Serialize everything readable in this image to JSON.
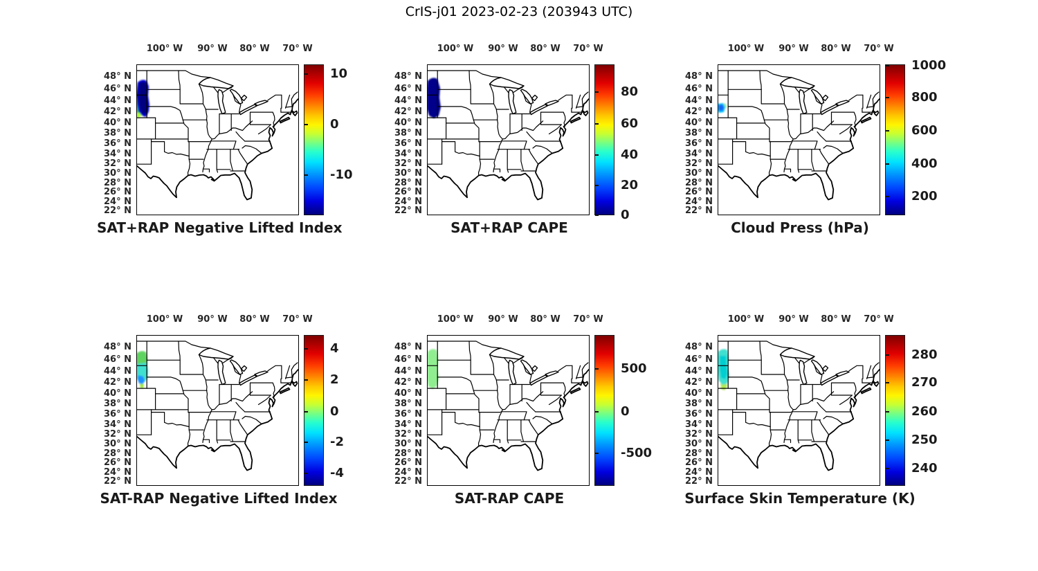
{
  "title": "CrIS-j01 2023-02-23 (203943 UTC)",
  "map_axes": {
    "lon_ticks": [
      "100° W",
      "90° W",
      "80° W",
      "70° W"
    ],
    "lat_ticks": [
      "48° N",
      "46° N",
      "44° N",
      "42° N",
      "40° N",
      "38° N",
      "36° N",
      "34° N",
      "32° N",
      "30° N",
      "28° N",
      "26° N",
      "24° N",
      "22° N"
    ]
  },
  "colors": {
    "background": "#ffffff",
    "map_outline": "#000000",
    "text": "#1a1a1a",
    "jet_colormap_stops": [
      "#7f0000",
      "#e10000",
      "#ff8200",
      "#fff500",
      "#78ff82",
      "#00e1ff",
      "#0048ff",
      "#00007f"
    ]
  },
  "panels": [
    {
      "caption": "SAT+RAP Negative Lifted Index",
      "colorbar_ticks": [
        {
          "label": "10",
          "pos": 0.065
        },
        {
          "label": "0",
          "pos": 0.4
        },
        {
          "label": "-10",
          "pos": 0.735
        }
      ],
      "blob_colors": [
        "#ADFF2F",
        "#32CD32",
        "#00CED1",
        "#0000CD",
        "#000080"
      ]
    },
    {
      "caption": "SAT+RAP CAPE",
      "colorbar_ticks": [
        {
          "label": "80",
          "pos": 0.184
        },
        {
          "label": "60",
          "pos": 0.396
        },
        {
          "label": "40",
          "pos": 0.599
        },
        {
          "label": "20",
          "pos": 0.802
        },
        {
          "label": "0",
          "pos": 1.0
        }
      ],
      "blob_colors": [
        "#00008B"
      ]
    },
    {
      "caption": "Cloud Press (hPa)",
      "colorbar_ticks": [
        {
          "label": "1000",
          "pos": 0.01
        },
        {
          "label": "800",
          "pos": 0.22
        },
        {
          "label": "600",
          "pos": 0.44
        },
        {
          "label": "400",
          "pos": 0.66
        },
        {
          "label": "200",
          "pos": 0.876
        }
      ],
      "blob_colors": [
        "#90EE90",
        "#00BFFF",
        "#1464F4"
      ]
    },
    {
      "caption": "SAT-RAP Negative Lifted Index",
      "colorbar_ticks": [
        {
          "label": "4",
          "pos": 0.092
        },
        {
          "label": "2",
          "pos": 0.3
        },
        {
          "label": "0",
          "pos": 0.507
        },
        {
          "label": "-2",
          "pos": 0.71
        },
        {
          "label": "-4",
          "pos": 0.917
        }
      ],
      "blob_colors": [
        "#5FD35F",
        "#40E0D0",
        "#1E90FF",
        "#9AE838"
      ]
    },
    {
      "caption": "SAT-RAP CAPE",
      "colorbar_ticks": [
        {
          "label": "500",
          "pos": 0.226
        },
        {
          "label": "0",
          "pos": 0.507
        },
        {
          "label": "-500",
          "pos": 0.783
        }
      ],
      "blob_colors": [
        "#90EE90"
      ]
    },
    {
      "caption": "Surface Skin Temperature (K)",
      "colorbar_ticks": [
        {
          "label": "280",
          "pos": 0.134
        },
        {
          "label": "270",
          "pos": 0.318
        },
        {
          "label": "260",
          "pos": 0.507
        },
        {
          "label": "250",
          "pos": 0.696
        },
        {
          "label": "240",
          "pos": 0.885
        }
      ],
      "blob_colors": [
        "#AEE84F",
        "#40E0D0",
        "#00CED1"
      ]
    }
  ],
  "chart_data": {
    "type": "map",
    "figure_title": "CrIS-j01 2023-02-23 (203943 UTC)",
    "layout": "2 rows x 3 columns of identical CONUS maps, jet colorbar right of each map",
    "lon_ticks_deg_w": [
      100,
      90,
      80,
      70
    ],
    "lat_ticks_deg_n": [
      48,
      46,
      44,
      42,
      40,
      38,
      36,
      34,
      32,
      30,
      28,
      26,
      24,
      22
    ],
    "map_extent": {
      "lon_w": [
        106.5,
        67
      ],
      "lat_n": [
        21.5,
        50
      ]
    },
    "panels": [
      {
        "title": "SAT+RAP Negative Lifted Index",
        "colormap": "jet",
        "colorbar_ticks": [
          10,
          0,
          -10
        ],
        "colorbar_range_approx": [
          -17,
          12
        ],
        "swath": {
          "lon_w": [
            106.5,
            103.5
          ],
          "lat_n": [
            40.5,
            47.5
          ],
          "values": "mostly -14 to -17 (dark blue); rises to about -6 to +1 (cyan/green/yellow fringe) near 40.5-42.5N at the west edge"
        }
      },
      {
        "title": "SAT+RAP CAPE",
        "colormap": "jet",
        "colorbar_ticks": [
          80,
          60,
          40,
          20,
          0
        ],
        "colorbar_range_approx": [
          0,
          98
        ],
        "swath": {
          "lon_w": [
            106.5,
            103.5
          ],
          "lat_n": [
            41,
            47.5
          ],
          "values": "uniform ~0 (solid dark blue swath)"
        }
      },
      {
        "title": "Cloud Press (hPa)",
        "colormap": "jet",
        "colorbar_ticks": [
          1000,
          800,
          600,
          400,
          200
        ],
        "colorbar_range_approx": [
          90,
          1010
        ],
        "swath": {
          "lon_w": [
            106.5,
            104.5
          ],
          "lat_n": [
            41,
            43.5
          ],
          "values": "small cluster ~250-450 hPa (blue/cyan) with ~550 hPa (green) fringe"
        }
      },
      {
        "title": "SAT-RAP Negative Lifted Index",
        "colormap": "jet",
        "colorbar_ticks": [
          4,
          2,
          0,
          -2,
          -4
        ],
        "colorbar_range_approx": [
          -5,
          5
        ],
        "swath": {
          "lon_w": [
            106.5,
            103.5
          ],
          "lat_n": [
            40.5,
            47.5
          ],
          "values": "about 0 to +0.5 (green) 45-47.5N; -1 to -2 (cyan) 42-45N; -2.5 to -3.5 (blue) patches 41-43N"
        }
      },
      {
        "title": "SAT-RAP CAPE",
        "colormap": "jet",
        "colorbar_ticks": [
          500,
          0,
          -500
        ],
        "colorbar_range_approx": [
          -900,
          900
        ],
        "swath": {
          "lon_w": [
            106.5,
            103.5
          ],
          "lat_n": [
            41,
            47.5
          ],
          "values": "uniform ~0 to +100 (light green swath)"
        }
      },
      {
        "title": "Surface Skin Temperature (K)",
        "colormap": "jet",
        "colorbar_ticks": [
          280,
          270,
          260,
          250,
          240
        ],
        "colorbar_range_approx": [
          236,
          288
        ],
        "swath": {
          "lon_w": [
            106.5,
            103.5
          ],
          "lat_n": [
            40.5,
            47.5
          ],
          "values": "~250-256 K (cyan) over 42-47.5N; ~258-263 K (green-yellow) fringe 40.5-42N"
        }
      }
    ]
  }
}
